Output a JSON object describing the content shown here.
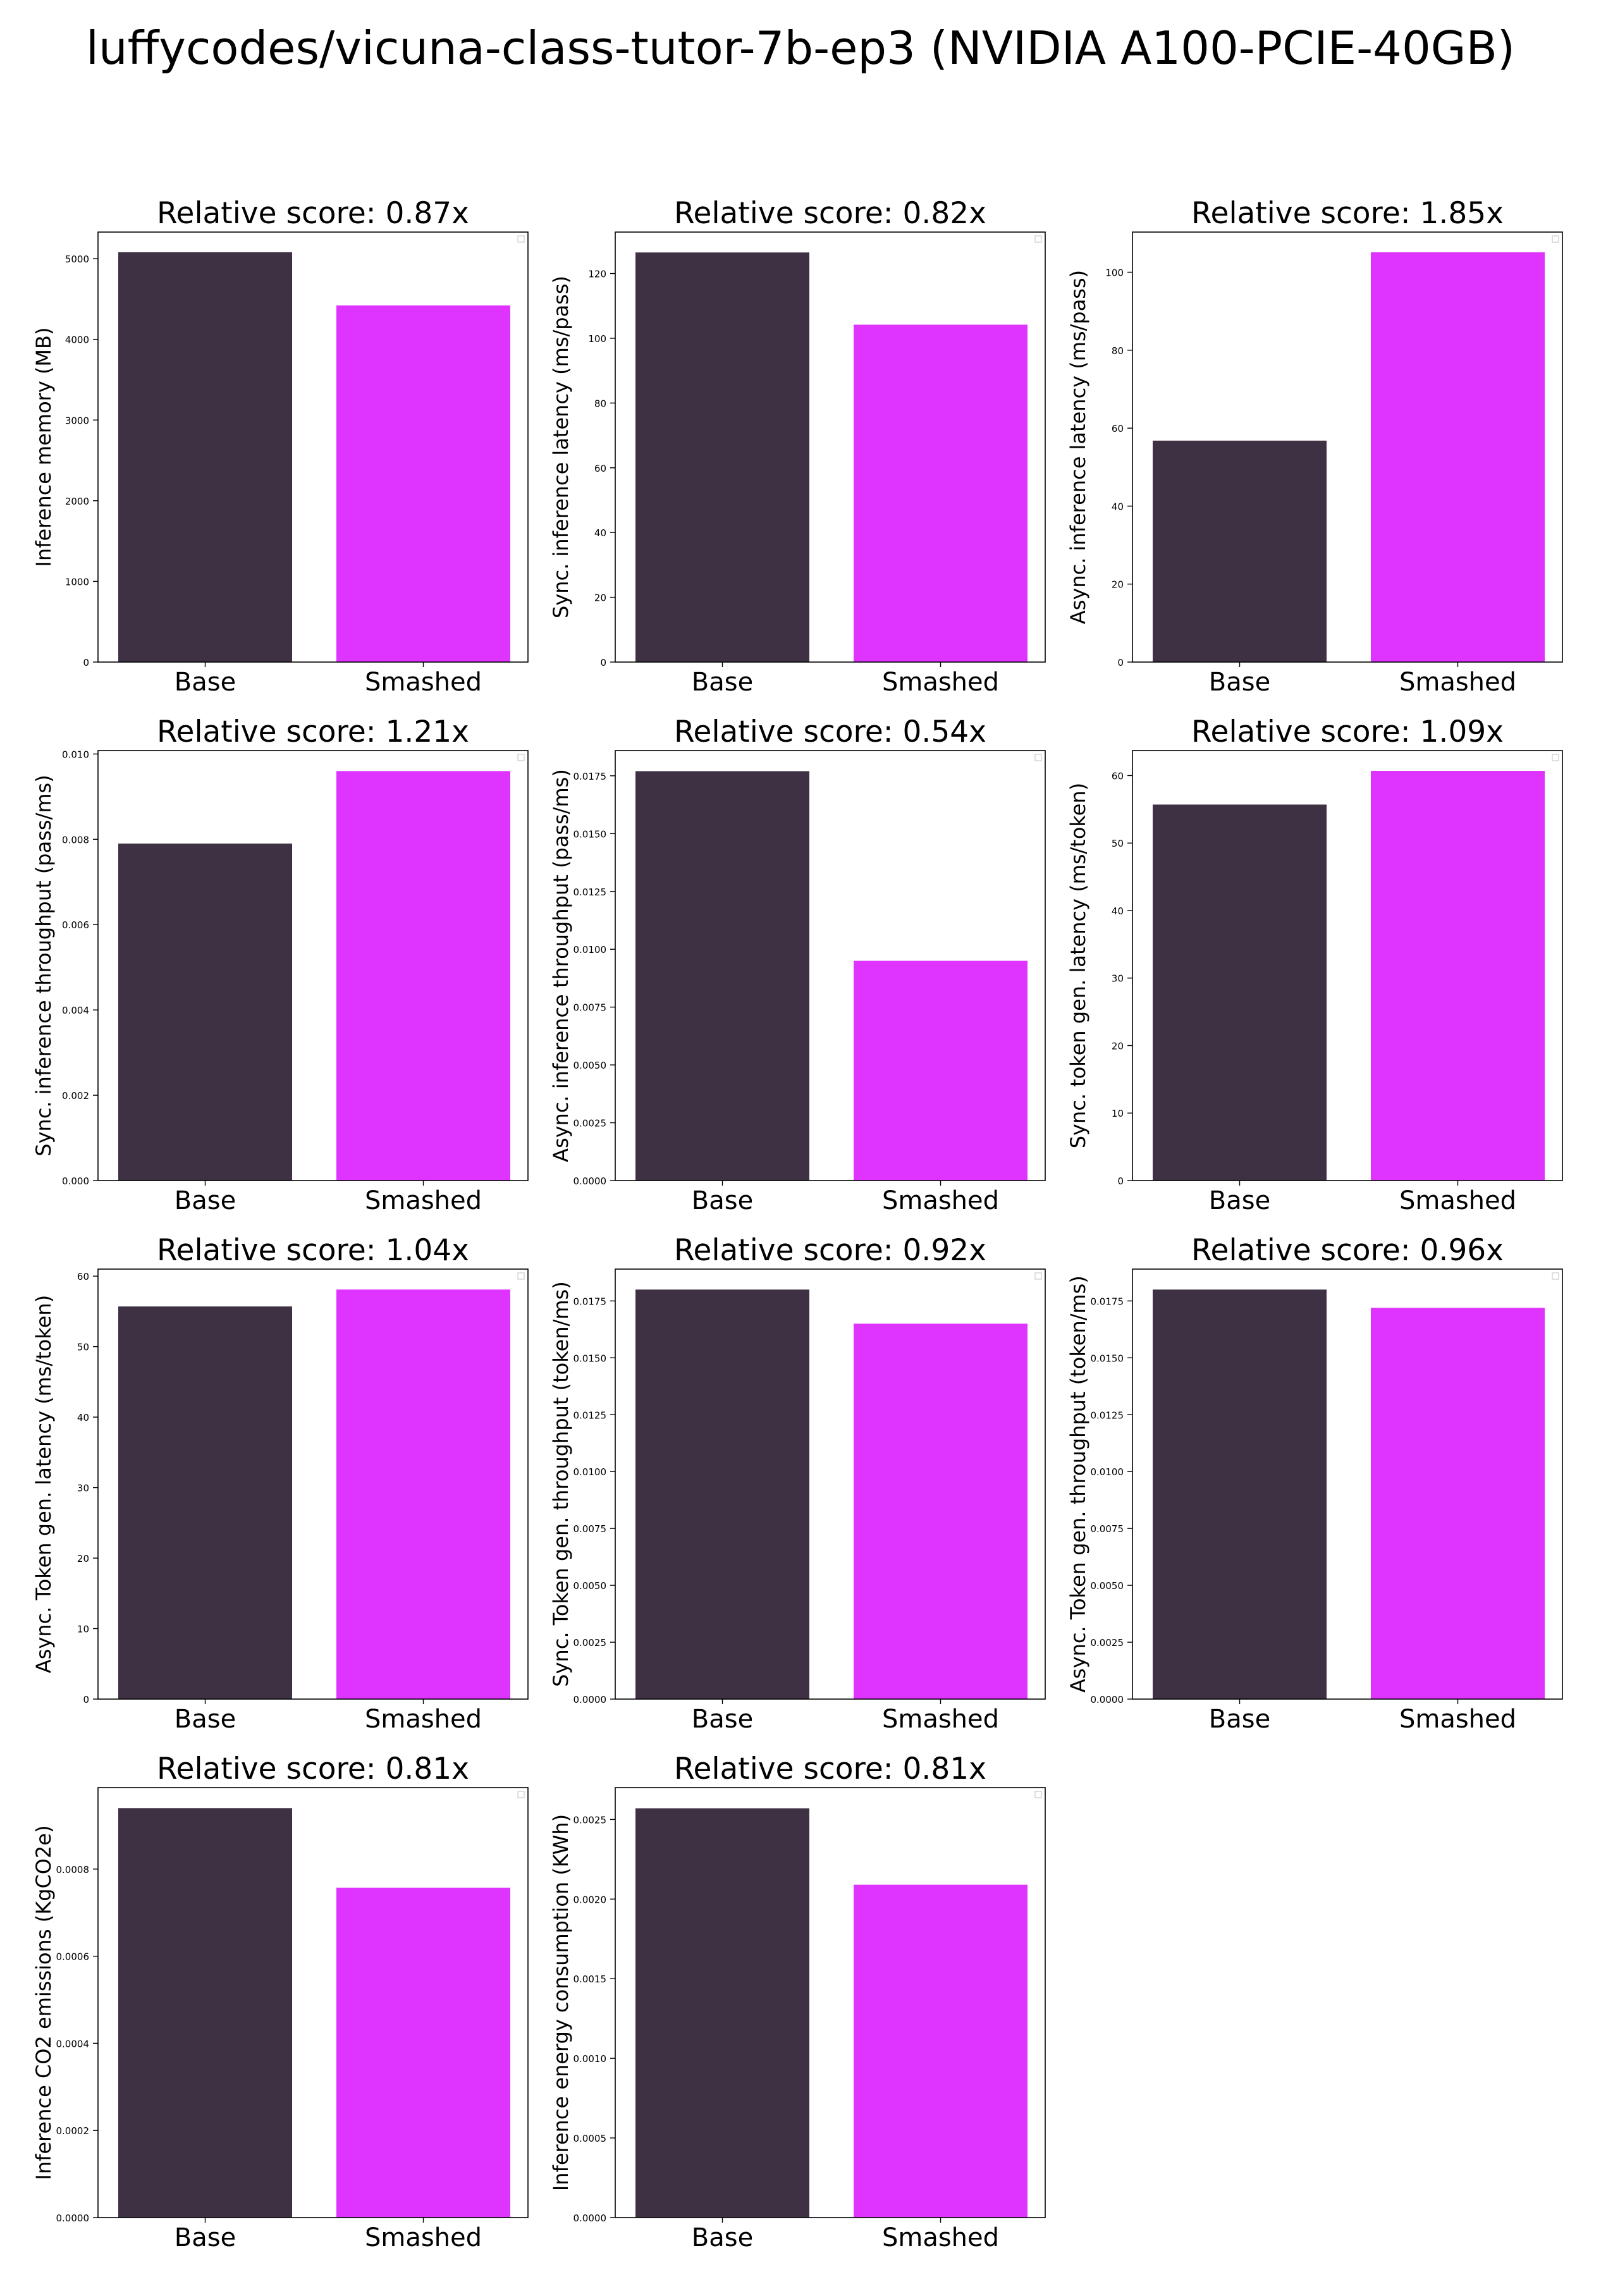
{
  "figure": {
    "title": "luffycodes/vicuna-class-tutor-7b-ep3 (NVIDIA A100-PCIE-40GB)"
  },
  "colors": {
    "base": "#3f3144",
    "smashed": "#df33ff",
    "axis": "#000000"
  },
  "chart_data": [
    {
      "type": "bar",
      "title": "Relative score: 0.87x",
      "ylabel": "Inference memory (MB)",
      "categories": [
        "Base",
        "Smashed"
      ],
      "values": [
        5080,
        4420
      ],
      "ylim": [
        0,
        5330
      ],
      "yticks": [
        "0",
        "1000",
        "2000",
        "3000",
        "4000",
        "5000"
      ],
      "ytick_values": [
        0,
        1000,
        2000,
        3000,
        4000,
        5000
      ]
    },
    {
      "type": "bar",
      "title": "Relative score: 0.82x",
      "ylabel": "Sync. inference latency (ms/pass)",
      "categories": [
        "Base",
        "Smashed"
      ],
      "values": [
        126.5,
        104.2
      ],
      "ylim": [
        0,
        132.8
      ],
      "yticks": [
        "0",
        "20",
        "40",
        "60",
        "80",
        "100",
        "120"
      ],
      "ytick_values": [
        0,
        20,
        40,
        60,
        80,
        100,
        120
      ]
    },
    {
      "type": "bar",
      "title": "Relative score: 1.85x",
      "ylabel": "Async. inference latency (ms/pass)",
      "categories": [
        "Base",
        "Smashed"
      ],
      "values": [
        56.8,
        105.1
      ],
      "ylim": [
        0,
        110.3
      ],
      "yticks": [
        "0",
        "20",
        "40",
        "60",
        "80",
        "100"
      ],
      "ytick_values": [
        0,
        20,
        40,
        60,
        80,
        100
      ]
    },
    {
      "type": "bar",
      "title": "Relative score: 1.21x",
      "ylabel": "Sync. inference throughput (pass/ms)",
      "categories": [
        "Base",
        "Smashed"
      ],
      "values": [
        0.0079,
        0.0096
      ],
      "ylim": [
        0,
        0.01008
      ],
      "yticks": [
        "0.000",
        "0.002",
        "0.004",
        "0.006",
        "0.008",
        "0.010"
      ],
      "ytick_values": [
        0,
        0.002,
        0.004,
        0.006,
        0.008,
        0.01
      ]
    },
    {
      "type": "bar",
      "title": "Relative score: 0.54x",
      "ylabel": "Async. inference throughput (pass/ms)",
      "categories": [
        "Base",
        "Smashed"
      ],
      "values": [
        0.0177,
        0.0095
      ],
      "ylim": [
        0,
        0.01859
      ],
      "yticks": [
        "0.0000",
        "0.0025",
        "0.0050",
        "0.0075",
        "0.0100",
        "0.0125",
        "0.0150",
        "0.0175"
      ],
      "ytick_values": [
        0,
        0.0025,
        0.005,
        0.0075,
        0.01,
        0.0125,
        0.015,
        0.0175
      ]
    },
    {
      "type": "bar",
      "title": "Relative score: 1.09x",
      "ylabel": "Sync. token gen. latency (ms/token)",
      "categories": [
        "Base",
        "Smashed"
      ],
      "values": [
        55.7,
        60.7
      ],
      "ylim": [
        0,
        63.7
      ],
      "yticks": [
        "0",
        "10",
        "20",
        "30",
        "40",
        "50",
        "60"
      ],
      "ytick_values": [
        0,
        10,
        20,
        30,
        40,
        50,
        60
      ]
    },
    {
      "type": "bar",
      "title": "Relative score: 1.04x",
      "ylabel": "Async. Token gen. latency (ms/token)",
      "categories": [
        "Base",
        "Smashed"
      ],
      "values": [
        55.7,
        58.1
      ],
      "ylim": [
        0,
        61.0
      ],
      "yticks": [
        "0",
        "10",
        "20",
        "30",
        "40",
        "50",
        "60"
      ],
      "ytick_values": [
        0,
        10,
        20,
        30,
        40,
        50,
        60
      ]
    },
    {
      "type": "bar",
      "title": "Relative score: 0.92x",
      "ylabel": "Sync. Token gen. throughput (token/ms)",
      "categories": [
        "Base",
        "Smashed"
      ],
      "values": [
        0.018,
        0.0165
      ],
      "ylim": [
        0,
        0.0189
      ],
      "yticks": [
        "0.0000",
        "0.0025",
        "0.0050",
        "0.0075",
        "0.0100",
        "0.0125",
        "0.0150",
        "0.0175"
      ],
      "ytick_values": [
        0,
        0.0025,
        0.005,
        0.0075,
        0.01,
        0.0125,
        0.015,
        0.0175
      ]
    },
    {
      "type": "bar",
      "title": "Relative score: 0.96x",
      "ylabel": "Async. Token gen. throughput (token/ms)",
      "categories": [
        "Base",
        "Smashed"
      ],
      "values": [
        0.018,
        0.0172
      ],
      "ylim": [
        0,
        0.0189
      ],
      "yticks": [
        "0.0000",
        "0.0025",
        "0.0050",
        "0.0075",
        "0.0100",
        "0.0125",
        "0.0150",
        "0.0175"
      ],
      "ytick_values": [
        0,
        0.0025,
        0.005,
        0.0075,
        0.01,
        0.0125,
        0.015,
        0.0175
      ]
    },
    {
      "type": "bar",
      "title": "Relative score: 0.81x",
      "ylabel": "Inference CO2 emissions (KgCO2e)",
      "categories": [
        "Base",
        "Smashed"
      ],
      "values": [
        0.00094,
        0.000757
      ],
      "ylim": [
        0,
        0.000987
      ],
      "yticks": [
        "0.0000",
        "0.0002",
        "0.0004",
        "0.0006",
        "0.0008"
      ],
      "ytick_values": [
        0,
        0.0002,
        0.0004,
        0.0006,
        0.0008
      ]
    },
    {
      "type": "bar",
      "title": "Relative score: 0.81x",
      "ylabel": "Inference energy consumption (KWh)",
      "categories": [
        "Base",
        "Smashed"
      ],
      "values": [
        0.00257,
        0.00209
      ],
      "ylim": [
        0,
        0.0027
      ],
      "yticks": [
        "0.0000",
        "0.0005",
        "0.0010",
        "0.0015",
        "0.0020",
        "0.0025"
      ],
      "ytick_values": [
        0,
        0.0005,
        0.001,
        0.0015,
        0.002,
        0.0025
      ]
    }
  ]
}
